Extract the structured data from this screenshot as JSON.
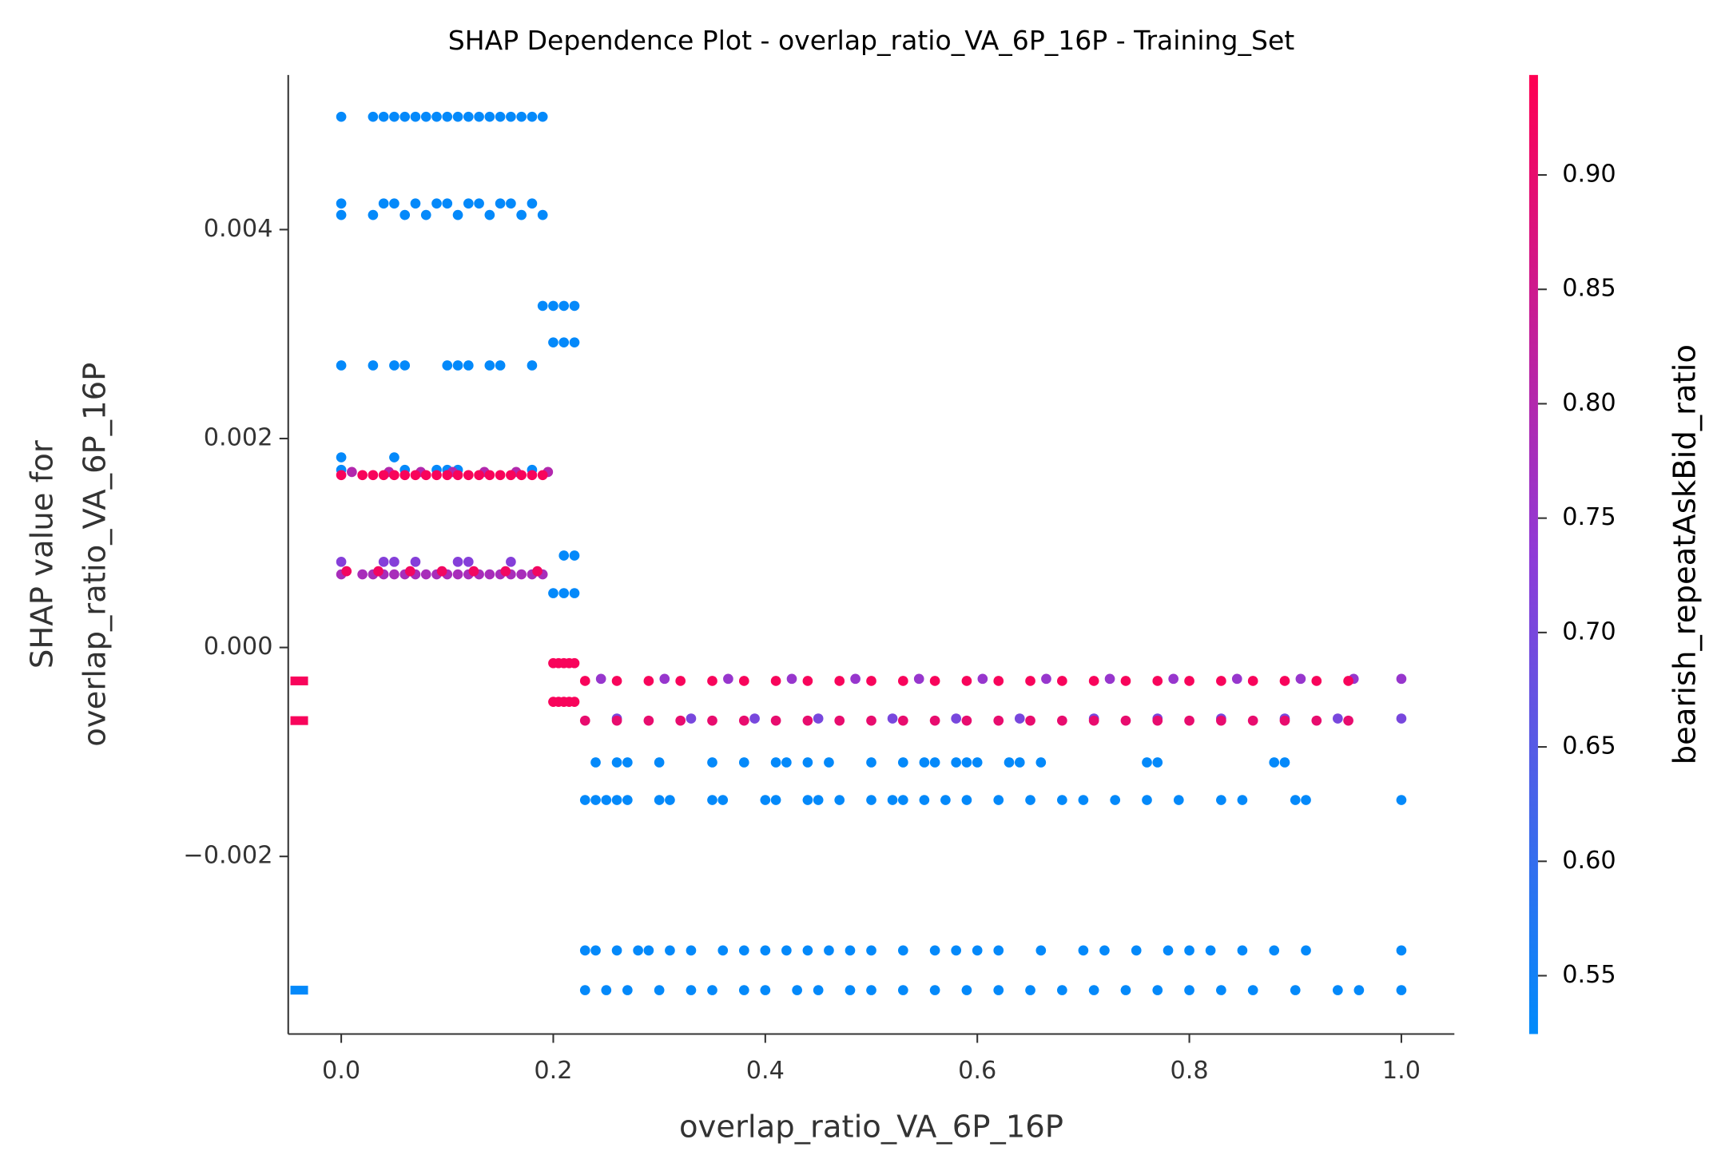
{
  "chart_data": {
    "type": "scatter",
    "title": "SHAP Dependence Plot - overlap_ratio_VA_6P_16P - Training_Set",
    "xlabel": "overlap_ratio_VA_6P_16P",
    "ylabel": [
      "SHAP value for",
      "overlap_ratio_VA_6P_16P"
    ],
    "colorbar_label": "bearish_repeatAskBid_ratio",
    "xlim": [
      -0.05,
      1.05
    ],
    "xticks": [
      {
        "value": 0,
        "label": "0.0"
      },
      0.2,
      0.4,
      0.6,
      0.8,
      {
        "value": 1,
        "label": "1.0"
      }
    ],
    "ylim": [
      -0.0037,
      0.00548
    ],
    "yticks": [
      {
        "value": -0.002,
        "label": "−0.002"
      },
      {
        "value": 0,
        "label": "0.000"
      },
      0.002,
      0.004
    ],
    "clim": [
      0.5245,
      0.9437
    ],
    "cticks": [
      0.55,
      {
        "value": 0.6,
        "label": "0.60"
      },
      0.65,
      {
        "value": 0.7,
        "label": "0.70"
      },
      0.75,
      {
        "value": 0.8,
        "label": "0.80"
      },
      0.85,
      {
        "value": 0.9,
        "label": "0.90"
      }
    ],
    "colormap": [
      "#008bfb",
      "#8f3ad7",
      "#ff0052"
    ],
    "series": [
      {
        "c": 0.53,
        "x": [
          0,
          0.03,
          0.04,
          0.05,
          0.06,
          0.07,
          0.08,
          0.09,
          0.1,
          0.11,
          0.12,
          0.13,
          0.14,
          0.15,
          0.16,
          0.17,
          0.18,
          0.19
        ],
        "values": [
          0.00508,
          0.00508,
          0.00508,
          0.00508,
          0.00508,
          0.00508,
          0.00508,
          0.00508,
          0.00508,
          0.00508,
          0.00508,
          0.00508,
          0.00508,
          0.00508,
          0.00508,
          0.00508,
          0.00508,
          0.00508
        ]
      },
      {
        "c": 0.53,
        "x": [
          0,
          0.04,
          0.05,
          0.07,
          0.09,
          0.1,
          0.12,
          0.13,
          0.15,
          0.16,
          0.18
        ],
        "values": [
          0.00425,
          0.00425,
          0.00425,
          0.00425,
          0.00425,
          0.00425,
          0.00425,
          0.00425,
          0.00425,
          0.00425,
          0.00425
        ]
      },
      {
        "c": 0.53,
        "x": [
          0,
          0.03,
          0.06,
          0.08,
          0.11,
          0.14,
          0.17,
          0.19
        ],
        "values": [
          0.00414,
          0.00414,
          0.00414,
          0.00414,
          0.00414,
          0.00414,
          0.00414,
          0.00414
        ]
      },
      {
        "c": 0.53,
        "x": [
          0.19,
          0.2,
          0.21,
          0.22
        ],
        "values": [
          0.00327,
          0.00327,
          0.00327,
          0.00327
        ]
      },
      {
        "c": 0.53,
        "x": [
          0.2,
          0.21,
          0.22
        ],
        "values": [
          0.00292,
          0.00292,
          0.00292
        ]
      },
      {
        "c": 0.53,
        "x": [
          0,
          0.03,
          0.05,
          0.06,
          0.1,
          0.11,
          0.12,
          0.14,
          0.15,
          0.18
        ],
        "values": [
          0.0027,
          0.0027,
          0.0027,
          0.0027,
          0.0027,
          0.0027,
          0.0027,
          0.0027,
          0.0027,
          0.0027
        ]
      },
      {
        "c": 0.53,
        "x": [
          0,
          0.05
        ],
        "values": [
          0.00182,
          0.00182
        ]
      },
      {
        "c": 0.53,
        "x": [
          0,
          0.06,
          0.09,
          0.1,
          0.11,
          0.18
        ],
        "values": [
          0.0017,
          0.0017,
          0.0017,
          0.0017,
          0.0017,
          0.0017
        ]
      },
      {
        "c": 0.8,
        "x": [
          0.01,
          0.045,
          0.075,
          0.105,
          0.135,
          0.165,
          0.195
        ],
        "values": [
          0.00168,
          0.00168,
          0.00168,
          0.00168,
          0.00168,
          0.00168,
          0.00168
        ]
      },
      {
        "c": 0.93,
        "x": [
          0,
          0.02,
          0.03,
          0.04,
          0.05,
          0.06,
          0.07,
          0.08,
          0.09,
          0.1,
          0.11,
          0.12,
          0.13,
          0.14,
          0.15,
          0.16,
          0.17,
          0.18,
          0.19
        ],
        "values": [
          0.00165,
          0.00165,
          0.00165,
          0.00165,
          0.00165,
          0.00165,
          0.00165,
          0.00165,
          0.00165,
          0.00165,
          0.00165,
          0.00165,
          0.00165,
          0.00165,
          0.00165,
          0.00165,
          0.00165,
          0.00165,
          0.00165
        ]
      },
      {
        "c": 0.72,
        "x": [
          0,
          0.04,
          0.05,
          0.07,
          0.11,
          0.12,
          0.16
        ],
        "values": [
          0.00082,
          0.00082,
          0.00082,
          0.00082,
          0.00082,
          0.00082,
          0.00082
        ]
      },
      {
        "c": 0.78,
        "x": [
          0,
          0.02,
          0.03,
          0.04,
          0.05,
          0.06,
          0.07,
          0.08,
          0.09,
          0.1,
          0.11,
          0.12,
          0.13,
          0.14,
          0.15,
          0.16,
          0.17,
          0.18,
          0.19
        ],
        "values": [
          0.0007,
          0.0007,
          0.0007,
          0.0007,
          0.0007,
          0.0007,
          0.0007,
          0.0007,
          0.0007,
          0.0007,
          0.0007,
          0.0007,
          0.0007,
          0.0007,
          0.0007,
          0.0007,
          0.0007,
          0.0007,
          0.0007
        ]
      },
      {
        "c": 0.92,
        "x": [
          0.005,
          0.035,
          0.065,
          0.095,
          0.125,
          0.155,
          0.185
        ],
        "values": [
          0.00073,
          0.00073,
          0.00073,
          0.00073,
          0.00073,
          0.00073,
          0.00073
        ]
      },
      {
        "c": 0.53,
        "x": [
          0.21,
          0.22
        ],
        "values": [
          0.00088,
          0.00088
        ]
      },
      {
        "c": 0.53,
        "x": [
          0.2,
          0.21,
          0.22
        ],
        "values": [
          0.00052,
          0.00052,
          0.00052
        ]
      },
      {
        "c": 0.93,
        "x": [
          0.2,
          0.205,
          0.21,
          0.215,
          0.22
        ],
        "values": [
          -0.00015,
          -0.00015,
          -0.00015,
          -0.00015,
          -0.00015
        ]
      },
      {
        "c": 0.93,
        "x": [
          0.2,
          0.205,
          0.21,
          0.215,
          0.22
        ],
        "values": [
          -0.00052,
          -0.00052,
          -0.00052,
          -0.00052,
          -0.00052
        ]
      },
      {
        "c": 0.75,
        "x": [
          0.245,
          0.305,
          0.365,
          0.425,
          0.485,
          0.545,
          0.605,
          0.665,
          0.725,
          0.785,
          0.845,
          0.905,
          0.955,
          1
        ],
        "values": [
          -0.0003,
          -0.0003,
          -0.0003,
          -0.0003,
          -0.0003,
          -0.0003,
          -0.0003,
          -0.0003,
          -0.0003,
          -0.0003,
          -0.0003,
          -0.0003,
          -0.0003,
          -0.0003
        ]
      },
      {
        "c": 0.93,
        "x": [
          0.23,
          0.26,
          0.29,
          0.32,
          0.35,
          0.38,
          0.41,
          0.44,
          0.47,
          0.5,
          0.53,
          0.56,
          0.59,
          0.62,
          0.65,
          0.68,
          0.71,
          0.74,
          0.77,
          0.8,
          0.83,
          0.86,
          0.89,
          0.92,
          0.95
        ],
        "values": [
          -0.00032,
          -0.00032,
          -0.00032,
          -0.00032,
          -0.00032,
          -0.00032,
          -0.00032,
          -0.00032,
          -0.00032,
          -0.00032,
          -0.00032,
          -0.00032,
          -0.00032,
          -0.00032,
          -0.00032,
          -0.00032,
          -0.00032,
          -0.00032,
          -0.00032,
          -0.00032,
          -0.00032,
          -0.00032,
          -0.00032,
          -0.00032,
          -0.00032
        ]
      },
      {
        "c": 0.7,
        "x": [
          0.26,
          0.33,
          0.39,
          0.45,
          0.52,
          0.58,
          0.64,
          0.71,
          0.77,
          0.83,
          0.89,
          0.94,
          1
        ],
        "values": [
          -0.00068,
          -0.00068,
          -0.00068,
          -0.00068,
          -0.00068,
          -0.00068,
          -0.00068,
          -0.00068,
          -0.00068,
          -0.00068,
          -0.00068,
          -0.00068,
          -0.00068
        ]
      },
      {
        "c": 0.9,
        "x": [
          0.23,
          0.26,
          0.29,
          0.32,
          0.35,
          0.38,
          0.41,
          0.44,
          0.47,
          0.5,
          0.53,
          0.56,
          0.59,
          0.62,
          0.65,
          0.68,
          0.71,
          0.74,
          0.77,
          0.8,
          0.83,
          0.86,
          0.89,
          0.92,
          0.95
        ],
        "values": [
          -0.0007,
          -0.0007,
          -0.0007,
          -0.0007,
          -0.0007,
          -0.0007,
          -0.0007,
          -0.0007,
          -0.0007,
          -0.0007,
          -0.0007,
          -0.0007,
          -0.0007,
          -0.0007,
          -0.0007,
          -0.0007,
          -0.0007,
          -0.0007,
          -0.0007,
          -0.0007,
          -0.0007,
          -0.0007,
          -0.0007,
          -0.0007,
          -0.0007
        ]
      },
      {
        "c": 0.53,
        "x": [
          0.24,
          0.26,
          0.27,
          0.3,
          0.35,
          0.38,
          0.41,
          0.42,
          0.44,
          0.46,
          0.5,
          0.53,
          0.55,
          0.56,
          0.58,
          0.59,
          0.6,
          0.63,
          0.64,
          0.66,
          0.76,
          0.77,
          0.88,
          0.89
        ],
        "values": [
          -0.0011,
          -0.0011,
          -0.0011,
          -0.0011,
          -0.0011,
          -0.0011,
          -0.0011,
          -0.0011,
          -0.0011,
          -0.0011,
          -0.0011,
          -0.0011,
          -0.0011,
          -0.0011,
          -0.0011,
          -0.0011,
          -0.0011,
          -0.0011,
          -0.0011,
          -0.0011,
          -0.0011,
          -0.0011,
          -0.0011,
          -0.0011
        ]
      },
      {
        "c": 0.53,
        "x": [
          0.23,
          0.24,
          0.25,
          0.26,
          0.27,
          0.3,
          0.31,
          0.35,
          0.36,
          0.4,
          0.41,
          0.44,
          0.45,
          0.47,
          0.5,
          0.52,
          0.53,
          0.55,
          0.57,
          0.59,
          0.62,
          0.65,
          0.68,
          0.7,
          0.73,
          0.76,
          0.79,
          0.83,
          0.85,
          0.9,
          0.91,
          1
        ],
        "values": [
          -0.00146,
          -0.00146,
          -0.00146,
          -0.00146,
          -0.00146,
          -0.00146,
          -0.00146,
          -0.00146,
          -0.00146,
          -0.00146,
          -0.00146,
          -0.00146,
          -0.00146,
          -0.00146,
          -0.00146,
          -0.00146,
          -0.00146,
          -0.00146,
          -0.00146,
          -0.00146,
          -0.00146,
          -0.00146,
          -0.00146,
          -0.00146,
          -0.00146,
          -0.00146,
          -0.00146,
          -0.00146,
          -0.00146,
          -0.00146,
          -0.00146,
          -0.00146
        ]
      },
      {
        "c": 0.53,
        "x": [
          0.23,
          0.24,
          0.26,
          0.28,
          0.29,
          0.31,
          0.33,
          0.36,
          0.38,
          0.4,
          0.42,
          0.44,
          0.46,
          0.48,
          0.5,
          0.53,
          0.56,
          0.58,
          0.6,
          0.62,
          0.66,
          0.7,
          0.72,
          0.75,
          0.78,
          0.8,
          0.82,
          0.85,
          0.88,
          0.91,
          1
        ],
        "values": [
          -0.0029,
          -0.0029,
          -0.0029,
          -0.0029,
          -0.0029,
          -0.0029,
          -0.0029,
          -0.0029,
          -0.0029,
          -0.0029,
          -0.0029,
          -0.0029,
          -0.0029,
          -0.0029,
          -0.0029,
          -0.0029,
          -0.0029,
          -0.0029,
          -0.0029,
          -0.0029,
          -0.0029,
          -0.0029,
          -0.0029,
          -0.0029,
          -0.0029,
          -0.0029,
          -0.0029,
          -0.0029,
          -0.0029,
          -0.0029,
          -0.0029
        ]
      },
      {
        "c": 0.53,
        "x": [
          0.23,
          0.25,
          0.27,
          0.3,
          0.33,
          0.35,
          0.38,
          0.4,
          0.43,
          0.45,
          0.48,
          0.5,
          0.53,
          0.56,
          0.59,
          0.62,
          0.65,
          0.68,
          0.71,
          0.74,
          0.77,
          0.8,
          0.83,
          0.86,
          0.9,
          0.94,
          0.96,
          1
        ],
        "values": [
          -0.00328,
          -0.00328,
          -0.00328,
          -0.00328,
          -0.00328,
          -0.00328,
          -0.00328,
          -0.00328,
          -0.00328,
          -0.00328,
          -0.00328,
          -0.00328,
          -0.00328,
          -0.00328,
          -0.00328,
          -0.00328,
          -0.00328,
          -0.00328,
          -0.00328,
          -0.00328,
          -0.00328,
          -0.00328,
          -0.00328,
          -0.00328,
          -0.00328,
          -0.00328,
          -0.00328,
          -0.00328
        ]
      }
    ],
    "missing": [
      {
        "c": 0.93,
        "values": [
          -0.00032
        ]
      },
      {
        "c": 0.93,
        "values": [
          -0.0007
        ]
      },
      {
        "c": 0.53,
        "values": [
          -0.00328
        ]
      }
    ]
  }
}
